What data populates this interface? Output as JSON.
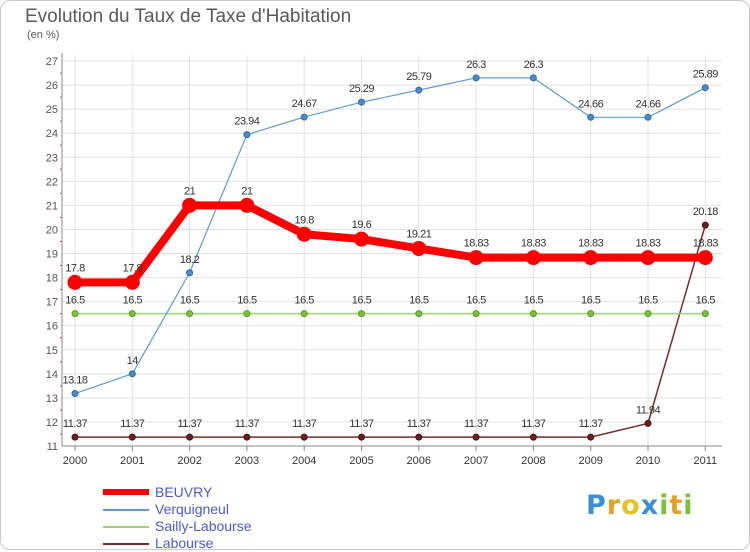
{
  "header": {
    "title": "Evolution du Taux de Taxe d'Habitation",
    "subtitle": "(en %)"
  },
  "logo": {
    "letters": [
      "P",
      "r",
      "o",
      "x",
      "i",
      "t",
      "i"
    ],
    "colors": [
      "#3a8fd9",
      "#e8a020",
      "#e6c320",
      "#3a8fd9",
      "#7ec03a",
      "#e8a020",
      "#7ec03a"
    ]
  },
  "chart_data": {
    "type": "line",
    "title": "Evolution du Taux de Taxe d'Habitation",
    "ylabel": "(en %)",
    "xlabel": "",
    "x": [
      "2000",
      "2001",
      "2002",
      "2003",
      "2004",
      "2005",
      "2006",
      "2007",
      "2008",
      "2009",
      "2010",
      "2011"
    ],
    "ylim": [
      11,
      27
    ],
    "yticks": [
      "11",
      "12",
      "13",
      "14",
      "15",
      "16",
      "17",
      "18",
      "19",
      "20",
      "21",
      "22",
      "23",
      "24",
      "25",
      "26",
      "27"
    ],
    "grid": true,
    "legend_position": "bottom-left",
    "series": [
      {
        "name": "BEUVRY",
        "color": "#ff0000",
        "values": [
          17.8,
          17.8,
          21,
          21,
          19.8,
          19.6,
          19.21,
          18.83,
          18.83,
          18.83,
          18.83,
          18.83
        ],
        "labels": [
          "17.8",
          "17.8",
          "21",
          "21",
          "19.8",
          "19.6",
          "19.21",
          "18.83",
          "18.83",
          "18.83",
          "18.83",
          "18.83"
        ]
      },
      {
        "name": "Verquigneul",
        "color": "#5e9bd4",
        "values": [
          13.18,
          14,
          18.2,
          23.94,
          24.67,
          25.29,
          25.79,
          26.3,
          26.3,
          24.66,
          24.66,
          25.89
        ],
        "labels": [
          "13.18",
          "14",
          "18.2",
          "23.94",
          "24.67",
          "25.29",
          "25.79",
          "26.3",
          "26.3",
          "24.66",
          "24.66",
          "25.89"
        ]
      },
      {
        "name": "Sailly-Labourse",
        "color": "#9ad66a",
        "values": [
          16.5,
          16.5,
          16.5,
          16.5,
          16.5,
          16.5,
          16.5,
          16.5,
          16.5,
          16.5,
          16.5,
          16.5
        ],
        "labels": [
          "16.5",
          "16.5",
          "16.5",
          "16.5",
          "16.5",
          "16.5",
          "16.5",
          "16.5",
          "16.5",
          "16.5",
          "16.5",
          "16.5"
        ]
      },
      {
        "name": "Labourse",
        "color": "#7a2b2b",
        "values": [
          11.37,
          11.37,
          11.37,
          11.37,
          11.37,
          11.37,
          11.37,
          11.37,
          11.37,
          11.37,
          11.94,
          20.18
        ],
        "labels": [
          "11.37",
          "11.37",
          "11.37",
          "11.37",
          "11.37",
          "11.37",
          "11.37",
          "11.37",
          "11.37",
          "11.37",
          "11.94",
          "20.18"
        ]
      }
    ]
  }
}
